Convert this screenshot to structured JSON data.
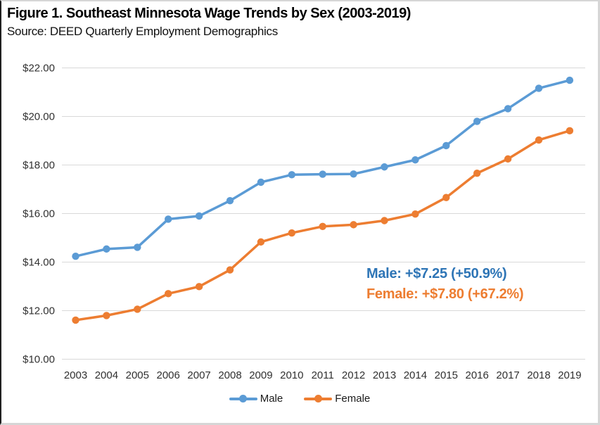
{
  "header": {
    "title": "Figure 1. Southeast Minnesota Wage Trends by Sex (2003-2019)",
    "source": "Source: DEED Quarterly Employment Demographics"
  },
  "annotation": {
    "male": "Male: +$7.25 (+50.9%)",
    "female": "Female: +$7.80 (+67.2%)"
  },
  "colors": {
    "male_line": "#5B9BD5",
    "female_line": "#ED7D31",
    "male_annotation": "#2E75B6",
    "female_annotation": "#ED7D31",
    "gridline": "#D9D9D9",
    "axis_text": "#303030"
  },
  "chart_data": {
    "type": "line",
    "title": "Figure 1. Southeast Minnesota Wage Trends by Sex (2003-2019)",
    "subtitle": "Source: DEED Quarterly Employment Demographics",
    "x": [
      2003,
      2004,
      2005,
      2006,
      2007,
      2008,
      2009,
      2010,
      2011,
      2012,
      2013,
      2014,
      2015,
      2016,
      2017,
      2018,
      2019
    ],
    "series": [
      {
        "name": "Male",
        "color": "#5B9BD5",
        "values": [
          14.24,
          14.54,
          14.61,
          15.77,
          15.9,
          16.53,
          17.29,
          17.6,
          17.62,
          17.63,
          17.92,
          18.21,
          18.8,
          19.8,
          20.32,
          21.16,
          21.49
        ]
      },
      {
        "name": "Female",
        "color": "#ED7D31",
        "values": [
          11.61,
          11.8,
          12.06,
          12.7,
          12.99,
          13.68,
          14.83,
          15.2,
          15.47,
          15.54,
          15.71,
          15.98,
          16.66,
          17.66,
          18.25,
          19.03,
          19.41
        ]
      }
    ],
    "ylim": [
      10,
      22
    ],
    "ytick_values": [
      22,
      20,
      18,
      16,
      14,
      12,
      10
    ],
    "ytick_labels": [
      "$22.00",
      "$20.00",
      "$18.00",
      "$16.00",
      "$14.00",
      "$12.00",
      "$10.00"
    ],
    "grid": true,
    "legend_position": "bottom",
    "annotations": [
      {
        "text": "Male: +$7.25 (+50.9%)",
        "color": "#2E75B6"
      },
      {
        "text": "Female: +$7.80 (+67.2%)",
        "color": "#ED7D31"
      }
    ]
  }
}
